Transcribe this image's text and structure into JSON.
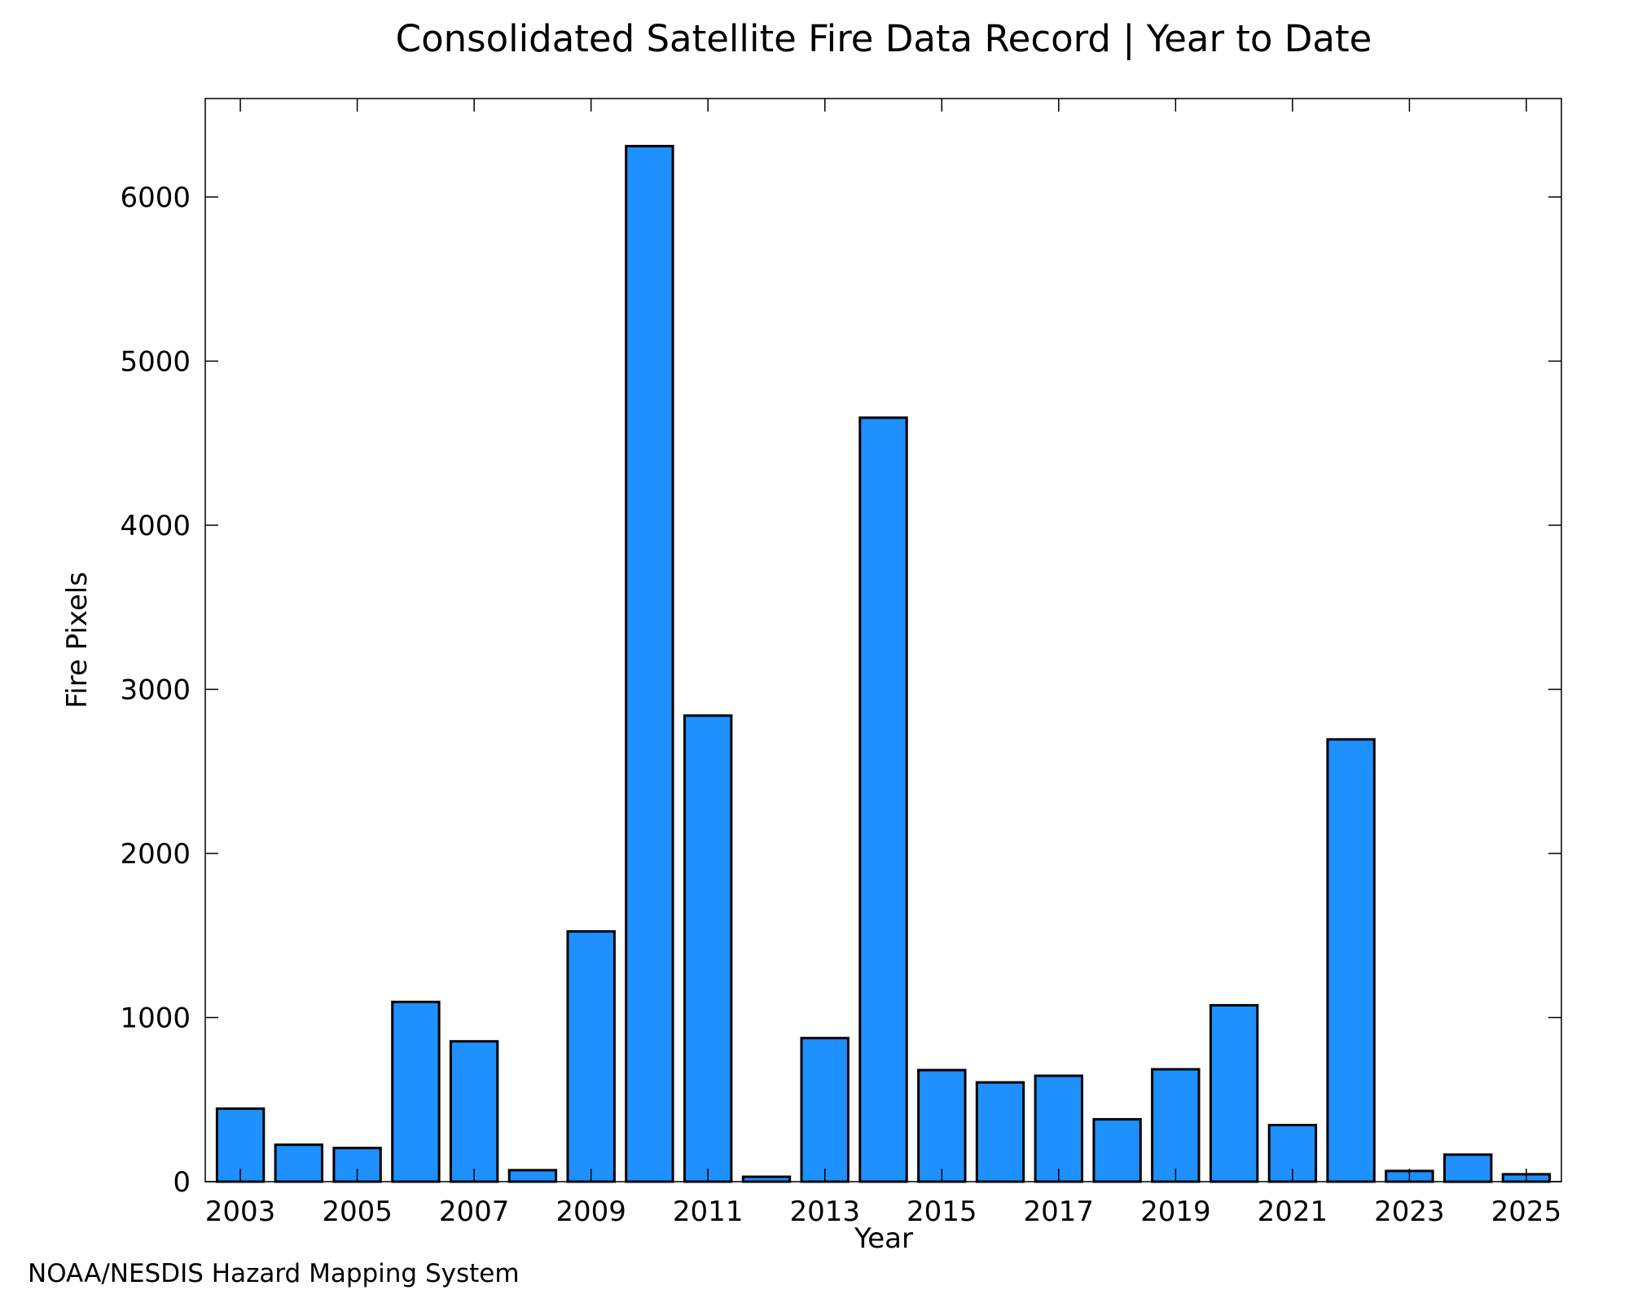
{
  "chart_data": {
    "type": "bar",
    "title": "Consolidated Satellite Fire Data Record | Year to Date",
    "xlabel": "Year",
    "ylabel": "Fire Pixels",
    "categories": [
      "2003",
      "2004",
      "2005",
      "2006",
      "2007",
      "2008",
      "2009",
      "2010",
      "2011",
      "2012",
      "2013",
      "2014",
      "2015",
      "2016",
      "2017",
      "2018",
      "2019",
      "2020",
      "2021",
      "2022",
      "2023",
      "2024",
      "2025"
    ],
    "values": [
      445,
      225,
      205,
      1095,
      855,
      70,
      1525,
      6310,
      2840,
      30,
      875,
      4655,
      680,
      605,
      645,
      380,
      685,
      1075,
      345,
      2695,
      65,
      165,
      45
    ],
    "x_tick_labels": [
      "2003",
      "2005",
      "2007",
      "2009",
      "2011",
      "2013",
      "2015",
      "2017",
      "2019",
      "2021",
      "2023",
      "2025"
    ],
    "y_tick_labels": [
      "0",
      "1000",
      "2000",
      "3000",
      "4000",
      "5000",
      "6000"
    ],
    "ylim": [
      0,
      6600
    ],
    "grid": false,
    "bar_color": "#1e90ff",
    "bar_edge_color": "#000000"
  },
  "footer": {
    "credit": "NOAA/NESDIS Hazard Mapping System",
    "credit_color": "#7f7f7f"
  }
}
